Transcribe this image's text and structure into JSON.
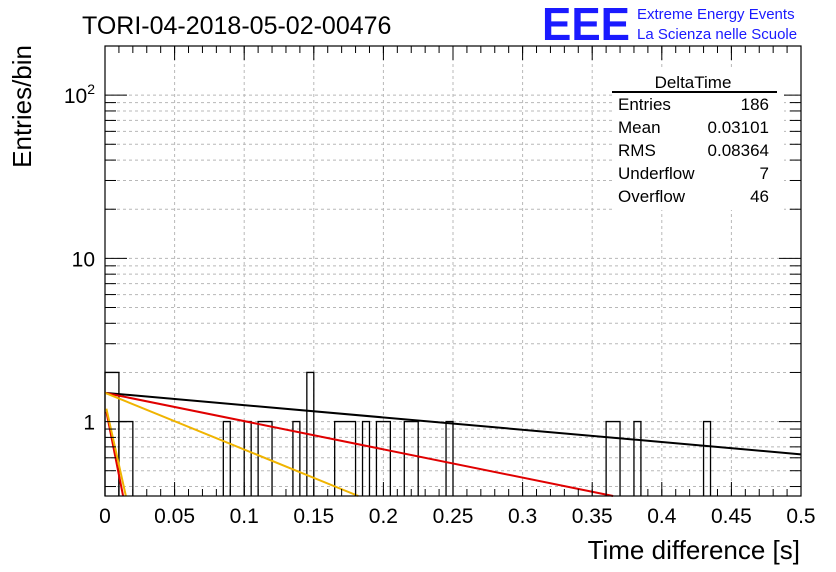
{
  "header": {
    "run_title": "TORI-04-2018-05-02-00476",
    "logo_letters": "EEE",
    "logo_line1": "Extreme Energy Events",
    "logo_line2": "La Scienza nelle Scuole",
    "brand_color": "#1a1aff"
  },
  "stats": {
    "title": "DeltaTime",
    "rows": [
      {
        "label": "Entries",
        "value": "186"
      },
      {
        "label": "Mean",
        "value": "0.03101"
      },
      {
        "label": "RMS",
        "value": "0.08364"
      },
      {
        "label": "Underflow",
        "value": "7"
      },
      {
        "label": "Overflow",
        "value": "46"
      }
    ]
  },
  "chart_data": {
    "type": "bar",
    "xlabel": "Time difference [s]",
    "ylabel": "Entries/bin",
    "xlim": [
      0,
      0.5
    ],
    "ylim": [
      0.35,
      200
    ],
    "log_y": true,
    "grid": true,
    "x_ticks": [
      {
        "v": 0,
        "label": "0"
      },
      {
        "v": 0.05,
        "label": "0.05"
      },
      {
        "v": 0.1,
        "label": "0.1"
      },
      {
        "v": 0.15,
        "label": "0.15"
      },
      {
        "v": 0.2,
        "label": "0.2"
      },
      {
        "v": 0.25,
        "label": "0.25"
      },
      {
        "v": 0.3,
        "label": "0.3"
      },
      {
        "v": 0.35,
        "label": "0.35"
      },
      {
        "v": 0.4,
        "label": "0.4"
      },
      {
        "v": 0.45,
        "label": "0.45"
      },
      {
        "v": 0.5,
        "label": "0.5"
      }
    ],
    "y_ticks": [
      {
        "v": 1,
        "label": "1",
        "exp": ""
      },
      {
        "v": 10,
        "label": "10",
        "exp": ""
      },
      {
        "v": 100,
        "label": "10",
        "exp": "2"
      }
    ],
    "bins": [
      {
        "x0": 0.0,
        "x1": 0.01,
        "y": 2
      },
      {
        "x0": 0.01,
        "x1": 0.02,
        "y": 1
      },
      {
        "x0": 0.085,
        "x1": 0.09,
        "y": 1
      },
      {
        "x0": 0.1,
        "x1": 0.105,
        "y": 1
      },
      {
        "x0": 0.11,
        "x1": 0.12,
        "y": 1
      },
      {
        "x0": 0.135,
        "x1": 0.14,
        "y": 1
      },
      {
        "x0": 0.145,
        "x1": 0.15,
        "y": 2
      },
      {
        "x0": 0.165,
        "x1": 0.18,
        "y": 1
      },
      {
        "x0": 0.185,
        "x1": 0.19,
        "y": 1
      },
      {
        "x0": 0.195,
        "x1": 0.205,
        "y": 1
      },
      {
        "x0": 0.215,
        "x1": 0.225,
        "y": 1
      },
      {
        "x0": 0.245,
        "x1": 0.25,
        "y": 1
      },
      {
        "x0": 0.36,
        "x1": 0.37,
        "y": 1
      },
      {
        "x0": 0.38,
        "x1": 0.385,
        "y": 1
      },
      {
        "x0": 0.43,
        "x1": 0.435,
        "y": 1
      }
    ],
    "fits": [
      {
        "color": "#000000",
        "points": [
          [
            0,
            1.5
          ],
          [
            0.5,
            0.63
          ]
        ]
      },
      {
        "color": "#e00000",
        "points": [
          [
            0,
            1.5
          ],
          [
            0.365,
            0.35
          ]
        ]
      },
      {
        "color": "#f0b400",
        "points": [
          [
            0,
            1.5
          ],
          [
            0.182,
            0.35
          ]
        ]
      },
      {
        "color": "#e00000",
        "points": [
          [
            0.001,
            1.15
          ],
          [
            0.013,
            0.35
          ]
        ]
      },
      {
        "color": "#f0b400",
        "points": [
          [
            0.001,
            1.2
          ],
          [
            0.015,
            0.35
          ]
        ]
      }
    ]
  }
}
